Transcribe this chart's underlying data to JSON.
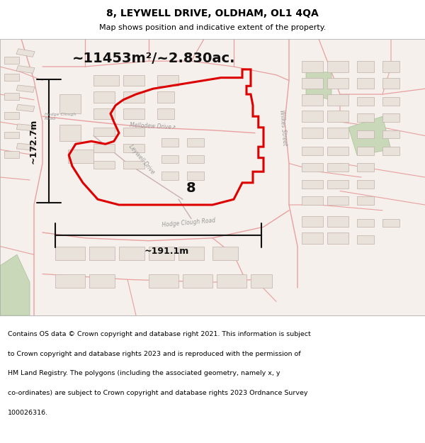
{
  "title": "8, LEYWELL DRIVE, OLDHAM, OL1 4QA",
  "subtitle": "Map shows position and indicative extent of the property.",
  "area_label": "~11453m²/~2.830ac.",
  "width_label": "~191.1m",
  "height_label": "~172.7m",
  "plot_number": "8",
  "footer_lines": [
    "Contains OS data © Crown copyright and database right 2021. This information is subject",
    "to Crown copyright and database rights 2023 and is reproduced with the permission of",
    "HM Land Registry. The polygons (including the associated geometry, namely x, y",
    "co-ordinates) are subject to Crown copyright and database rights 2023 Ordnance Survey",
    "100026316."
  ],
  "bg_color": "#ffffff",
  "map_bg": "#f5f0eb",
  "title_color": "#000000",
  "footer_color": "#000000",
  "property_color": "#dd0000",
  "road_color": "#e8a0a0",
  "road_color2": "#c8b0b0",
  "building_fill": "#e8e2da",
  "building_stroke": "#c0b0a8",
  "green_fill": "#c8d8b8",
  "green_stroke": "#a8c098",
  "sep_color": "#bbbbbb",
  "title_fontsize": 10,
  "subtitle_fontsize": 8,
  "area_fontsize": 14,
  "measure_fontsize": 9,
  "footer_fontsize": 6.8,
  "plot_label_fontsize": 14
}
